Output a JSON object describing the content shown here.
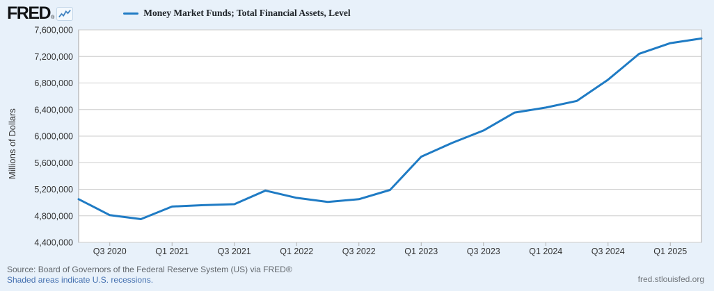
{
  "header": {
    "logo_text": "FRED",
    "logo_reg_mark": "®",
    "sparkline_icon": "line-chart-sparkline-icon",
    "legend_label": "Money Market Funds; Total Financial Assets, Level"
  },
  "footer": {
    "source_line": "Source: Board of Governors of the Federal Reserve System (US) via FRED®",
    "recession_note": "Shaded areas indicate U.S. recessions.",
    "site_link": "fred.stlouisfed.org"
  },
  "colors": {
    "page_background": "#e8f1fa",
    "plot_background": "#ffffff",
    "plot_border": "#a3a3a3",
    "gridline": "#cbcbcb",
    "tick_mark": "#b0b0b0",
    "series_line": "#1f7bc4",
    "tick_text": "#333333",
    "source_text": "#62676c",
    "link_text": "#4470b0"
  },
  "chart_data": {
    "type": "line",
    "title": "Money Market Funds; Total Financial Assets, Level",
    "xlabel": "",
    "ylabel": "Millions of Dollars",
    "ylim": [
      4400000,
      7600000
    ],
    "y_ticks": [
      4400000,
      4800000,
      5200000,
      5600000,
      6000000,
      6400000,
      6800000,
      7200000,
      7600000
    ],
    "grid": "horizontal",
    "legend_position": "top-left",
    "x": [
      "2020 Q2",
      "2020 Q3",
      "2020 Q4",
      "2021 Q1",
      "2021 Q2",
      "2021 Q3",
      "2021 Q4",
      "2022 Q1",
      "2022 Q2",
      "2022 Q3",
      "2022 Q4",
      "2023 Q1",
      "2023 Q2",
      "2023 Q3",
      "2023 Q4",
      "2024 Q1",
      "2024 Q2",
      "2024 Q3",
      "2024 Q4",
      "2025 Q1",
      "2025 Q2"
    ],
    "values": [
      5050000,
      4810000,
      4750000,
      4940000,
      4960000,
      4975000,
      5180000,
      5070000,
      5010000,
      5050000,
      5190000,
      5690000,
      5900000,
      6085000,
      6355000,
      6430000,
      6530000,
      6850000,
      7240000,
      7400000,
      7470000
    ],
    "x_tick_labels": [
      "Q3 2020",
      "Q1 2021",
      "Q3 2021",
      "Q1 2022",
      "Q3 2022",
      "Q1 2023",
      "Q3 2023",
      "Q1 2024",
      "Q3 2024",
      "Q1 2025"
    ],
    "x_tick_indices": [
      1,
      3,
      5,
      7,
      9,
      11,
      13,
      15,
      17,
      19
    ]
  }
}
